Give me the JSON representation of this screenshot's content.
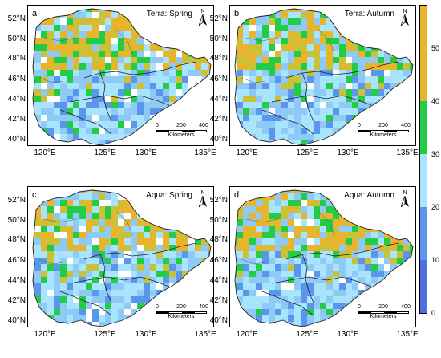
{
  "panels": [
    {
      "id": "a",
      "letter": "a",
      "title": "Terra: Spring"
    },
    {
      "id": "b",
      "letter": "b",
      "title": "Terra: Autumn"
    },
    {
      "id": "c",
      "letter": "c",
      "title": "Aqua: Spring"
    },
    {
      "id": "d",
      "letter": "d",
      "title": "Aqua: Autumn"
    }
  ],
  "latitude_labels": [
    "52°N",
    "50°N",
    "48°N",
    "46°N",
    "44°N",
    "42°N",
    "40°N"
  ],
  "longitude_labels": [
    "120°E",
    "125°E",
    "130°E",
    "135°E"
  ],
  "north_arrow_label": "N",
  "scale_bar": {
    "ticks": [
      "0",
      "200",
      "400"
    ],
    "unit": "Kilometers"
  },
  "colorbar": {
    "ticks": [
      "0",
      "10",
      "20",
      "30",
      "40",
      "50"
    ],
    "range": [
      0,
      58
    ],
    "classes": [
      {
        "from": 0,
        "to": 10,
        "color": "#4f6fe0"
      },
      {
        "from": 10,
        "to": 20,
        "color": "#5a96ec"
      },
      {
        "from": 20,
        "to": 30,
        "color": "#a9e4ff"
      },
      {
        "from": 30,
        "to": 40,
        "color": "#22cc44"
      },
      {
        "from": 40,
        "to": 58,
        "color": "#e8b42c"
      }
    ]
  }
}
